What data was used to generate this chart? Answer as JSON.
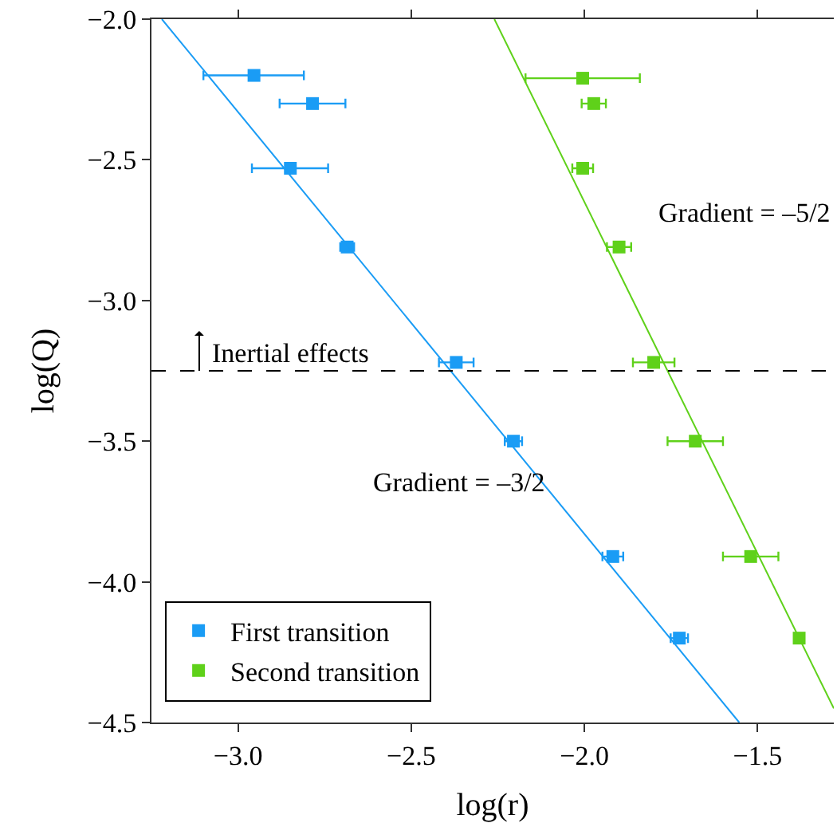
{
  "chart_data": {
    "type": "scatter",
    "xlabel": "log(r)",
    "ylabel": "log(Q)",
    "xlim": [
      -3.25,
      -1.28
    ],
    "ylim": [
      -4.5,
      -2.0
    ],
    "xticks": [
      {
        "value": -3.0,
        "label": "−3.0"
      },
      {
        "value": -2.5,
        "label": "−2.5"
      },
      {
        "value": -2.0,
        "label": "−2.0"
      },
      {
        "value": -1.5,
        "label": "−1.5"
      }
    ],
    "yticks": [
      {
        "value": -4.5,
        "label": "−4.5"
      },
      {
        "value": -4.0,
        "label": "−4.0"
      },
      {
        "value": -3.5,
        "label": "−3.5"
      },
      {
        "value": -3.0,
        "label": "−3.0"
      },
      {
        "value": -2.5,
        "label": "−2.5"
      },
      {
        "value": -2.0,
        "label": "−2.0"
      }
    ],
    "legend": "bottom left",
    "series": [
      {
        "name": "First transition",
        "color": "#1a9cf5",
        "marker": "square",
        "x": [
          -2.954,
          -2.785,
          -2.849,
          -2.685,
          -2.37,
          -2.205,
          -1.918,
          -1.726
        ],
        "values": [
          -2.2,
          -2.3,
          -2.53,
          -2.81,
          -3.22,
          -3.5,
          -3.91,
          -4.2
        ],
        "xerrors": [
          [
            -3.1,
            -2.81
          ],
          [
            -2.88,
            -2.69
          ],
          [
            -2.96,
            -2.74
          ],
          0.02,
          0.05,
          0.025,
          0.03,
          0.025
        ]
      },
      {
        "name": "Second transition",
        "color": "#5fd11a",
        "marker": "square",
        "x": [
          -2.005,
          -1.973,
          -2.005,
          -1.9,
          -1.8,
          -1.68,
          -1.52,
          -1.38
        ],
        "values": [
          -2.21,
          -2.3,
          -2.53,
          -2.81,
          -3.22,
          -3.5,
          -3.91,
          -4.2
        ],
        "xerrors": [
          [
            -2.17,
            -1.84
          ],
          0.035,
          0.03,
          0.035,
          0.06,
          0.08,
          0.08,
          null
        ]
      },
      {
        "type": "line",
        "color": "#1a9cf5",
        "x": [
          -3.22,
          -1.553
        ],
        "values": [
          -2.0,
          -4.5
        ]
      },
      {
        "type": "line",
        "color": "#5fd11a",
        "x": [
          -2.26,
          -1.28
        ],
        "values": [
          -2.0,
          -4.45
        ]
      }
    ],
    "ref_lines": [
      {
        "axis": "y",
        "value": -3.25,
        "label": "Inertial effects",
        "color": "#000000",
        "line_style": "dashed"
      }
    ],
    "annotations": [
      "Gradient = –5/2",
      "Gradient = –3/2"
    ]
  }
}
